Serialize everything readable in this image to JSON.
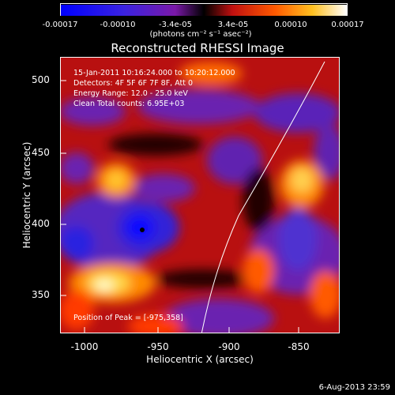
{
  "colorbar": {
    "ticks": [
      "-0.00017",
      "-0.00010",
      "-3.4e-05",
      "3.4e-05",
      "0.00010",
      "0.00017"
    ],
    "units": "(photons cm⁻² s⁻¹ asec⁻²)"
  },
  "title": "Reconstructed RHESSI Image",
  "info": {
    "time": "15-Jan-2011 10:16:24.000 to 10:20:12.000",
    "detectors": "Detectors: 4F 5F 6F 7F 8F, Att 0",
    "energy": "Energy Range: 12.0 - 25.0 keV",
    "clean": "Clean     Total counts: 6.95E+03"
  },
  "peak_label": "Position of Peak = [-975,358]",
  "axes": {
    "xlabel": "Heliocentric X (arcsec)",
    "ylabel": "Heliocentric Y (arcsec)",
    "xticks": [
      "-1000",
      "-950",
      "-900",
      "-850"
    ],
    "yticks": [
      "500",
      "450",
      "400",
      "350"
    ]
  },
  "datestamp": "6-Aug-2013 23:59"
}
